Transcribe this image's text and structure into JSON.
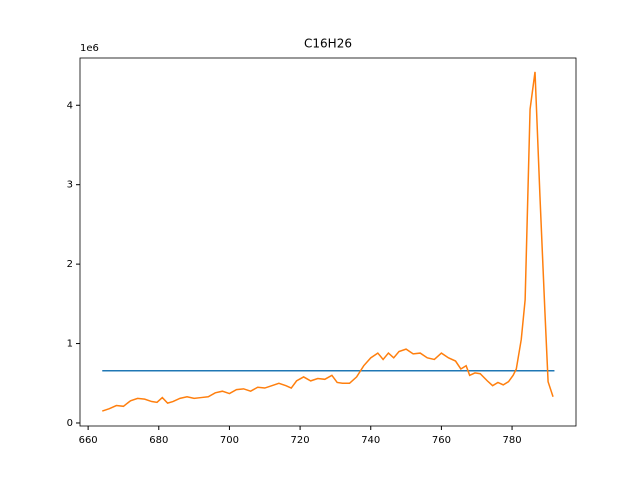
{
  "chart_data": {
    "type": "line",
    "title": "C16H26",
    "y_offset_label": "1e6",
    "xlim": [
      657.7,
      798.1
    ],
    "ylim": [
      -0.038,
      4.595
    ],
    "xticks": [
      660,
      680,
      700,
      720,
      740,
      760,
      780
    ],
    "yticks": [
      0,
      1,
      2,
      3,
      4
    ],
    "series": [
      {
        "color": "#1f77b4",
        "x": [
          664,
          792
        ],
        "values": [
          0.658,
          0.658
        ]
      },
      {
        "color": "#ff7f0e",
        "x": [
          664,
          666,
          668,
          670,
          672,
          674,
          676,
          678,
          679.5,
          681,
          682.5,
          684,
          686,
          688,
          690,
          692,
          694,
          696,
          698,
          700,
          702,
          704,
          706,
          708,
          710,
          712,
          714,
          716,
          717.5,
          719,
          721,
          723,
          725,
          727,
          729,
          730.5,
          732,
          734,
          736,
          738,
          740,
          742,
          743.5,
          745,
          746.5,
          748,
          750,
          752,
          754,
          756,
          758,
          760,
          762,
          764,
          765.5,
          767,
          768,
          769.5,
          771,
          773,
          774.5,
          776,
          777.5,
          779,
          780.3,
          781.2,
          782.6,
          783.7,
          785.1,
          786.5,
          787.9,
          789.3,
          790.2,
          791.6
        ],
        "values": [
          0.15,
          0.18,
          0.22,
          0.21,
          0.28,
          0.31,
          0.3,
          0.27,
          0.26,
          0.32,
          0.25,
          0.27,
          0.31,
          0.33,
          0.31,
          0.32,
          0.33,
          0.38,
          0.4,
          0.37,
          0.42,
          0.43,
          0.4,
          0.45,
          0.44,
          0.47,
          0.5,
          0.47,
          0.44,
          0.53,
          0.58,
          0.53,
          0.56,
          0.55,
          0.6,
          0.51,
          0.5,
          0.5,
          0.58,
          0.72,
          0.82,
          0.88,
          0.8,
          0.88,
          0.82,
          0.9,
          0.93,
          0.87,
          0.88,
          0.82,
          0.8,
          0.88,
          0.82,
          0.78,
          0.68,
          0.72,
          0.6,
          0.63,
          0.62,
          0.53,
          0.47,
          0.51,
          0.48,
          0.52,
          0.6,
          0.68,
          1.05,
          1.55,
          3.95,
          4.42,
          2.85,
          1.4,
          0.52,
          0.33
        ]
      }
    ]
  }
}
